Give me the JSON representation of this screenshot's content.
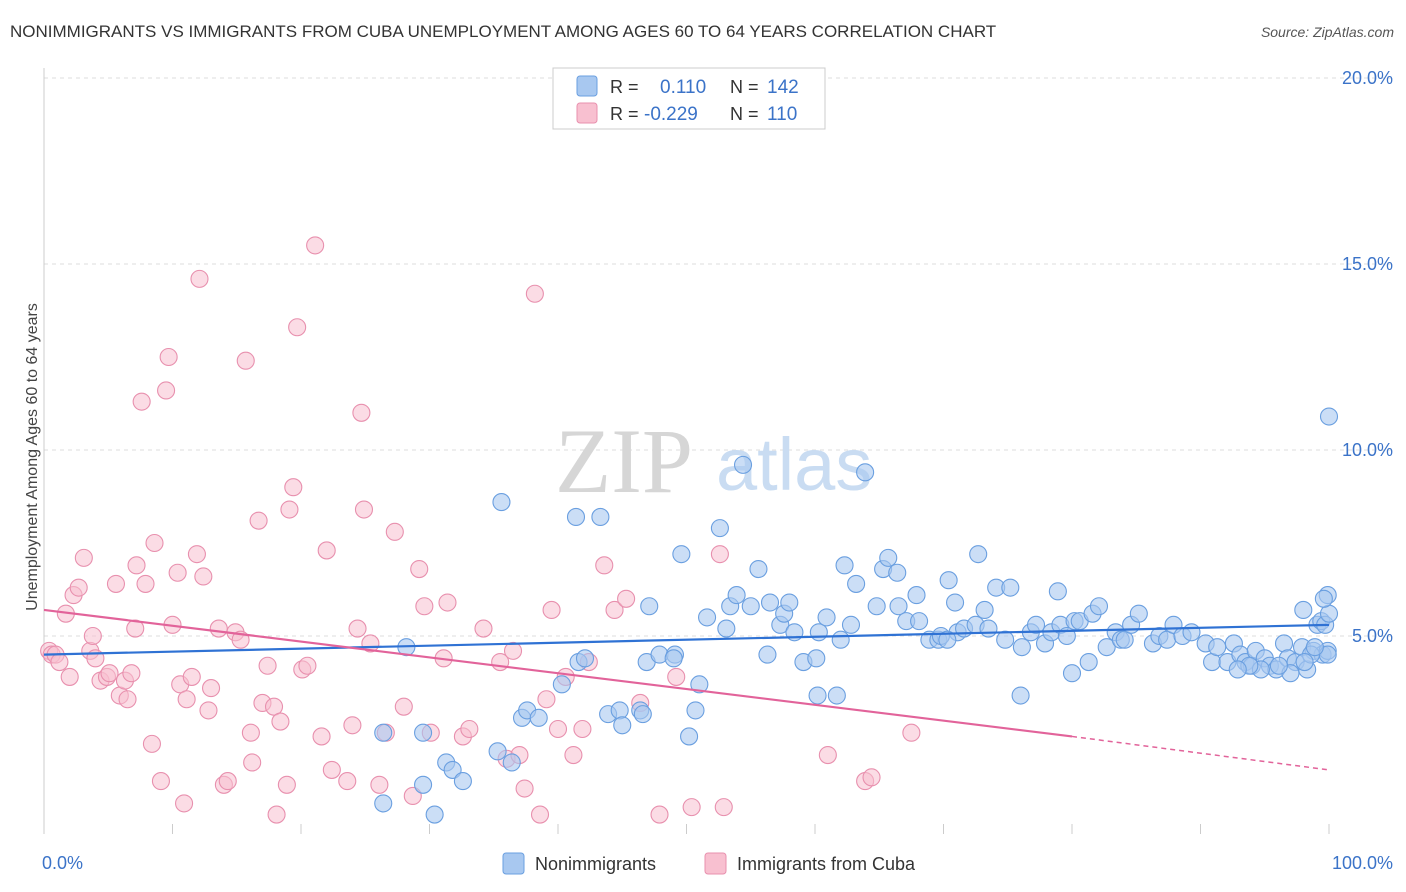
{
  "title": "NONIMMIGRANTS VS IMMIGRANTS FROM CUBA UNEMPLOYMENT AMONG AGES 60 TO 64 YEARS CORRELATION CHART",
  "source": "Source: ZipAtlas.com",
  "watermark": {
    "zip": "ZIP",
    "atlas": "atlas"
  },
  "legend_box": {
    "rows": [
      {
        "r_label": "R =",
        "r_value": "0.110",
        "n_label": "N =",
        "n_value": "142"
      },
      {
        "r_label": "R =",
        "r_value": "-0.229",
        "n_label": "N =",
        "n_value": "110"
      }
    ]
  },
  "bottom_legend": [
    "Nonimmigrants",
    "Immigrants from Cuba"
  ],
  "colors": {
    "blue_fill": "#a8c8f0",
    "blue_stroke": "#6a9fe0",
    "blue_line": "#2f72d4",
    "pink_fill": "#f8c0d0",
    "pink_stroke": "#e890ae",
    "pink_line": "#e2639a",
    "tick_text": "#3b73c8",
    "grid": "#dddddd"
  },
  "chart_data": {
    "type": "scatter",
    "title": "NONIMMIGRANTS VS IMMIGRANTS FROM CUBA UNEMPLOYMENT AMONG AGES 60 TO 64 YEARS CORRELATION CHART",
    "xlabel": "",
    "ylabel": "Unemployment Among Ages 60 to 64 years",
    "xlim": [
      0,
      100
    ],
    "ylim": [
      0,
      20
    ],
    "x_tick_labels": [
      "0.0%",
      "100.0%"
    ],
    "y_ticks": [
      5,
      10,
      15,
      20
    ],
    "y_tick_labels": [
      "5.0%",
      "10.0%",
      "15.0%",
      "20.0%"
    ],
    "grid": true,
    "legend_placement": "top-center",
    "series": [
      {
        "name": "Nonimmigrants",
        "r": 0.11,
        "n": 142,
        "trend": {
          "x": [
            0,
            100
          ],
          "y": [
            4.5,
            5.3
          ]
        },
        "points": [
          [
            26.4,
            2.4
          ],
          [
            26.4,
            0.5
          ],
          [
            28.2,
            4.7
          ],
          [
            29.5,
            1.0
          ],
          [
            29.5,
            2.4
          ],
          [
            30.4,
            0.2
          ],
          [
            31.3,
            1.6
          ],
          [
            31.8,
            1.4
          ],
          [
            32.6,
            1.1
          ],
          [
            35.3,
            1.9
          ],
          [
            35.6,
            8.6
          ],
          [
            36.4,
            1.6
          ],
          [
            37.2,
            2.8
          ],
          [
            37.6,
            3.0
          ],
          [
            41.4,
            8.2
          ],
          [
            41.6,
            4.3
          ],
          [
            42.1,
            4.4
          ],
          [
            43.3,
            8.2
          ],
          [
            43.9,
            2.9
          ],
          [
            44.8,
            3.0
          ],
          [
            46.4,
            3.0
          ],
          [
            46.6,
            2.9
          ],
          [
            46.9,
            4.3
          ],
          [
            47.1,
            5.8
          ],
          [
            47.9,
            4.5
          ],
          [
            49.1,
            4.5
          ],
          [
            49.6,
            7.2
          ],
          [
            50.2,
            2.3
          ],
          [
            50.7,
            3.0
          ],
          [
            51.6,
            5.5
          ],
          [
            52.6,
            7.9
          ],
          [
            53.1,
            5.2
          ],
          [
            53.4,
            5.8
          ],
          [
            53.9,
            6.1
          ],
          [
            54.4,
            9.6
          ],
          [
            55.0,
            5.8
          ],
          [
            55.6,
            6.8
          ],
          [
            56.3,
            4.5
          ],
          [
            56.5,
            5.9
          ],
          [
            57.3,
            5.3
          ],
          [
            57.6,
            5.6
          ],
          [
            58.0,
            5.9
          ],
          [
            58.4,
            5.1
          ],
          [
            59.1,
            4.3
          ],
          [
            60.2,
            3.4
          ],
          [
            60.3,
            5.1
          ],
          [
            60.9,
            5.5
          ],
          [
            61.7,
            3.4
          ],
          [
            62.0,
            4.9
          ],
          [
            62.3,
            6.9
          ],
          [
            62.8,
            5.3
          ],
          [
            63.2,
            6.4
          ],
          [
            63.9,
            9.4
          ],
          [
            64.8,
            5.8
          ],
          [
            65.3,
            6.8
          ],
          [
            65.7,
            7.1
          ],
          [
            66.4,
            6.7
          ],
          [
            66.5,
            5.8
          ],
          [
            67.1,
            5.4
          ],
          [
            67.9,
            6.1
          ],
          [
            68.1,
            5.4
          ],
          [
            68.9,
            4.9
          ],
          [
            69.6,
            4.9
          ],
          [
            69.8,
            5.0
          ],
          [
            70.4,
            6.5
          ],
          [
            70.9,
            5.9
          ],
          [
            71.1,
            5.1
          ],
          [
            71.6,
            5.2
          ],
          [
            72.5,
            5.3
          ],
          [
            72.7,
            7.2
          ],
          [
            73.2,
            5.7
          ],
          [
            73.5,
            5.2
          ],
          [
            74.1,
            6.3
          ],
          [
            74.8,
            4.9
          ],
          [
            75.2,
            6.3
          ],
          [
            76.1,
            4.7
          ],
          [
            76.8,
            5.1
          ],
          [
            77.2,
            5.3
          ],
          [
            77.9,
            4.8
          ],
          [
            78.4,
            5.1
          ],
          [
            78.9,
            6.2
          ],
          [
            79.1,
            5.3
          ],
          [
            79.6,
            5.0
          ],
          [
            80.2,
            5.4
          ],
          [
            80.6,
            5.4
          ],
          [
            81.3,
            4.3
          ],
          [
            81.6,
            5.6
          ],
          [
            82.1,
            5.8
          ],
          [
            82.7,
            4.7
          ],
          [
            83.4,
            5.1
          ],
          [
            83.8,
            4.9
          ],
          [
            84.1,
            4.9
          ],
          [
            84.6,
            5.3
          ],
          [
            85.2,
            5.6
          ],
          [
            86.3,
            4.8
          ],
          [
            86.8,
            5.0
          ],
          [
            87.4,
            4.9
          ],
          [
            87.9,
            5.3
          ],
          [
            88.6,
            5.0
          ],
          [
            89.3,
            5.1
          ],
          [
            90.4,
            4.8
          ],
          [
            90.9,
            4.3
          ],
          [
            91.3,
            4.7
          ],
          [
            92.1,
            4.3
          ],
          [
            92.6,
            4.8
          ],
          [
            93.1,
            4.5
          ],
          [
            93.5,
            4.3
          ],
          [
            94.0,
            4.2
          ],
          [
            94.3,
            4.6
          ],
          [
            95.0,
            4.4
          ],
          [
            95.4,
            4.2
          ],
          [
            95.9,
            4.1
          ],
          [
            96.5,
            4.8
          ],
          [
            96.8,
            4.4
          ],
          [
            97.4,
            4.3
          ],
          [
            97.9,
            4.7
          ],
          [
            98.3,
            4.1
          ],
          [
            98.8,
            4.6
          ],
          [
            99.1,
            5.3
          ],
          [
            99.5,
            4.5
          ],
          [
            99.9,
            4.6
          ],
          [
            99.9,
            4.5
          ],
          [
            98.6,
            4.5
          ],
          [
            98.0,
            5.7
          ],
          [
            98.9,
            4.7
          ],
          [
            99.4,
            5.4
          ],
          [
            99.7,
            5.3
          ],
          [
            100.0,
            5.6
          ],
          [
            99.9,
            6.1
          ],
          [
            99.6,
            6.0
          ],
          [
            98.1,
            4.3
          ],
          [
            97.0,
            4.0
          ],
          [
            96.1,
            4.2
          ],
          [
            94.7,
            4.1
          ],
          [
            93.8,
            4.2
          ],
          [
            92.9,
            4.1
          ],
          [
            100.0,
            10.9
          ],
          [
            80.0,
            4.0
          ],
          [
            76.0,
            3.4
          ],
          [
            70.3,
            4.9
          ],
          [
            60.1,
            4.4
          ],
          [
            40.3,
            3.7
          ],
          [
            45.0,
            2.6
          ],
          [
            38.5,
            2.8
          ],
          [
            51.0,
            3.7
          ],
          [
            49.0,
            4.4
          ]
        ]
      },
      {
        "name": "Immigrants from Cuba",
        "r": -0.229,
        "n": 110,
        "trend": {
          "x": [
            0,
            80
          ],
          "y": [
            5.7,
            2.3
          ]
        },
        "trend_dashed": {
          "x": [
            80,
            100
          ],
          "y": [
            2.3,
            1.4
          ]
        },
        "points": [
          [
            0.4,
            4.6
          ],
          [
            0.6,
            4.5
          ],
          [
            0.9,
            4.5
          ],
          [
            1.2,
            4.3
          ],
          [
            1.7,
            5.6
          ],
          [
            2.0,
            3.9
          ],
          [
            2.3,
            6.1
          ],
          [
            2.7,
            6.3
          ],
          [
            3.1,
            7.1
          ],
          [
            3.6,
            4.6
          ],
          [
            3.8,
            5.0
          ],
          [
            4.0,
            4.4
          ],
          [
            4.4,
            3.8
          ],
          [
            4.9,
            3.9
          ],
          [
            5.1,
            4.0
          ],
          [
            5.6,
            6.4
          ],
          [
            5.9,
            3.4
          ],
          [
            6.3,
            3.8
          ],
          [
            6.5,
            3.3
          ],
          [
            6.8,
            4.0
          ],
          [
            7.1,
            5.2
          ],
          [
            7.2,
            6.9
          ],
          [
            7.6,
            11.3
          ],
          [
            7.9,
            6.4
          ],
          [
            8.4,
            2.1
          ],
          [
            8.6,
            7.5
          ],
          [
            9.1,
            1.1
          ],
          [
            9.5,
            11.6
          ],
          [
            9.7,
            12.5
          ],
          [
            10.0,
            5.3
          ],
          [
            10.4,
            6.7
          ],
          [
            10.6,
            3.7
          ],
          [
            10.9,
            0.5
          ],
          [
            11.1,
            3.3
          ],
          [
            11.5,
            3.9
          ],
          [
            11.9,
            7.2
          ],
          [
            12.1,
            14.6
          ],
          [
            12.4,
            6.6
          ],
          [
            12.8,
            3.0
          ],
          [
            13.0,
            3.6
          ],
          [
            13.6,
            5.2
          ],
          [
            14.0,
            1.0
          ],
          [
            14.3,
            1.1
          ],
          [
            14.9,
            5.1
          ],
          [
            15.3,
            4.9
          ],
          [
            15.7,
            12.4
          ],
          [
            16.1,
            2.4
          ],
          [
            16.2,
            1.6
          ],
          [
            16.7,
            8.1
          ],
          [
            17.0,
            3.2
          ],
          [
            17.4,
            4.2
          ],
          [
            17.9,
            3.1
          ],
          [
            18.1,
            0.2
          ],
          [
            18.4,
            2.7
          ],
          [
            18.9,
            1.0
          ],
          [
            19.1,
            8.4
          ],
          [
            19.4,
            9.0
          ],
          [
            19.7,
            13.3
          ],
          [
            20.1,
            4.1
          ],
          [
            20.5,
            4.2
          ],
          [
            21.1,
            15.5
          ],
          [
            21.6,
            2.3
          ],
          [
            22.0,
            7.3
          ],
          [
            22.4,
            1.4
          ],
          [
            23.6,
            1.1
          ],
          [
            24.0,
            2.6
          ],
          [
            24.4,
            5.2
          ],
          [
            24.7,
            11.0
          ],
          [
            24.9,
            8.4
          ],
          [
            25.4,
            4.8
          ],
          [
            26.1,
            1.0
          ],
          [
            26.6,
            2.4
          ],
          [
            27.3,
            7.8
          ],
          [
            28.0,
            3.1
          ],
          [
            28.7,
            0.7
          ],
          [
            29.2,
            6.8
          ],
          [
            29.6,
            5.8
          ],
          [
            30.1,
            2.4
          ],
          [
            31.1,
            4.4
          ],
          [
            31.4,
            5.9
          ],
          [
            32.6,
            2.3
          ],
          [
            33.1,
            2.5
          ],
          [
            34.2,
            5.2
          ],
          [
            35.5,
            4.3
          ],
          [
            36.0,
            1.7
          ],
          [
            36.5,
            4.6
          ],
          [
            37.0,
            1.8
          ],
          [
            37.4,
            0.9
          ],
          [
            38.2,
            14.2
          ],
          [
            38.6,
            0.2
          ],
          [
            39.1,
            3.3
          ],
          [
            39.5,
            5.7
          ],
          [
            40.0,
            2.5
          ],
          [
            40.6,
            3.9
          ],
          [
            41.2,
            1.8
          ],
          [
            41.9,
            2.5
          ],
          [
            42.4,
            4.3
          ],
          [
            43.6,
            6.9
          ],
          [
            44.4,
            5.7
          ],
          [
            45.3,
            6.0
          ],
          [
            46.4,
            3.2
          ],
          [
            47.9,
            0.2
          ],
          [
            49.2,
            3.9
          ],
          [
            50.4,
            0.4
          ],
          [
            52.6,
            7.2
          ],
          [
            52.9,
            0.4
          ],
          [
            61.0,
            1.8
          ],
          [
            63.9,
            1.1
          ],
          [
            64.4,
            1.2
          ],
          [
            67.5,
            2.4
          ]
        ]
      }
    ]
  }
}
